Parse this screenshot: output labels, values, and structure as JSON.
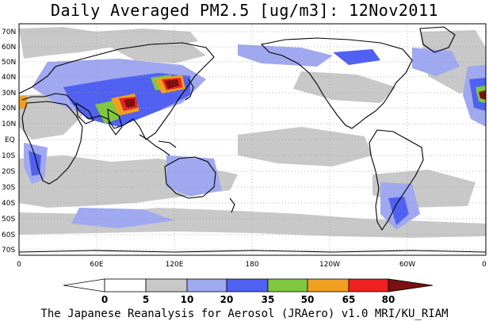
{
  "title": "Daily Averaged PM2.5 [ug/m3]: 12Nov2011",
  "footer": "The Japanese Reanalysis for Aerosol (JRAero) v1.0 MRI/KU_RIAM",
  "colors": {
    "land_outline": "#000000",
    "grid": "#9a9a9a",
    "ocean": "#ffffff"
  },
  "axes": {
    "lat_labels": [
      "70N",
      "60N",
      "50N",
      "40N",
      "30N",
      "20N",
      "10N",
      "EQ",
      "10S",
      "20S",
      "30S",
      "40S",
      "50S",
      "60S",
      "70S"
    ],
    "lon_labels": [
      "0",
      "60E",
      "120E",
      "180",
      "120W",
      "60W",
      "0"
    ]
  },
  "colorbar": {
    "levels": [
      "0",
      "5",
      "10",
      "20",
      "35",
      "50",
      "65",
      "80"
    ],
    "colors": [
      "#ffffff",
      "#c8c8c8",
      "#a0a8f0",
      "#5060f0",
      "#80c840",
      "#f0a020",
      "#f02020",
      "#7a1010"
    ]
  }
}
